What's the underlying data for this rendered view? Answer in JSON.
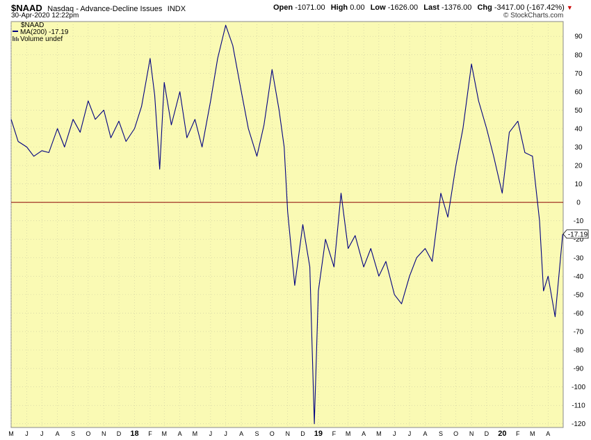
{
  "header": {
    "symbol": "$NAAD",
    "description": "Nasdaq - Advance-Decline Issues",
    "exchange": "INDX",
    "datetime": "30-Apr-2020 12:22pm",
    "open_label": "Open",
    "open_value": "-1071.00",
    "high_label": "High",
    "high_value": "0.00",
    "low_label": "Low",
    "low_value": "-1626.00",
    "last_label": "Last",
    "last_value": "-1376.00",
    "chg_label": "Chg",
    "chg_value": "-3417.00 (-167.42%)",
    "watermark": "© StockCharts.com"
  },
  "legend": {
    "symbol": "$NAAD",
    "ma": "MA(200) -17.19",
    "volume": "Volume undef"
  },
  "last_value_label": "-17.19",
  "colors": {
    "plot_bg": "#fafab4",
    "line": "#000080",
    "zero_line": "#8b0000",
    "grid": "#c8c8a0",
    "down_arrow": "#cc0000"
  },
  "chart_data": {
    "type": "line",
    "series": [
      {
        "name": "MA(200)",
        "x": [
          "2017-05-01",
          "2017-05-15",
          "2017-06-01",
          "2017-06-15",
          "2017-07-01",
          "2017-07-15",
          "2017-08-01",
          "2017-08-15",
          "2017-09-01",
          "2017-09-15",
          "2017-10-01",
          "2017-10-15",
          "2017-11-01",
          "2017-11-15",
          "2017-12-01",
          "2017-12-15",
          "2018-01-01",
          "2018-01-15",
          "2018-02-01",
          "2018-02-10",
          "2018-02-20",
          "2018-03-01",
          "2018-03-15",
          "2018-04-01",
          "2018-04-15",
          "2018-05-01",
          "2018-05-15",
          "2018-06-01",
          "2018-06-15",
          "2018-07-01",
          "2018-07-15",
          "2018-08-01",
          "2018-08-15",
          "2018-09-01",
          "2018-09-15",
          "2018-10-01",
          "2018-10-15",
          "2018-10-25",
          "2018-11-01",
          "2018-11-15",
          "2018-12-01",
          "2018-12-15",
          "2018-12-24",
          "2019-01-01",
          "2019-01-15",
          "2019-02-01",
          "2019-02-15",
          "2019-03-01",
          "2019-03-15",
          "2019-04-01",
          "2019-04-15",
          "2019-05-01",
          "2019-05-15",
          "2019-06-01",
          "2019-06-15",
          "2019-07-01",
          "2019-07-15",
          "2019-08-01",
          "2019-08-15",
          "2019-09-01",
          "2019-09-15",
          "2019-10-01",
          "2019-10-15",
          "2019-11-01",
          "2019-11-15",
          "2019-12-01",
          "2019-12-15",
          "2020-01-01",
          "2020-01-15",
          "2020-02-01",
          "2020-02-15",
          "2020-03-01",
          "2020-03-15",
          "2020-03-23",
          "2020-04-01",
          "2020-04-15",
          "2020-04-30"
        ],
        "values": [
          45,
          33,
          30,
          25,
          28,
          27,
          40,
          30,
          45,
          38,
          55,
          45,
          50,
          35,
          44,
          33,
          40,
          52,
          78,
          58,
          18,
          65,
          42,
          60,
          35,
          45,
          30,
          55,
          78,
          96,
          85,
          60,
          40,
          25,
          42,
          72,
          50,
          30,
          -5,
          -45,
          -12,
          -35,
          -120,
          -48,
          -20,
          -35,
          5,
          -25,
          -18,
          -35,
          -25,
          -40,
          -32,
          -50,
          -55,
          -40,
          -30,
          -25,
          -32,
          5,
          -8,
          20,
          40,
          75,
          55,
          40,
          25,
          5,
          38,
          44,
          27,
          25,
          -10,
          -48,
          -40,
          -62,
          -17.19
        ]
      }
    ],
    "reference_line": 0,
    "ylim": [
      -122,
      98
    ],
    "ytick_labels": [
      "90",
      "80",
      "70",
      "60",
      "50",
      "40",
      "30",
      "20",
      "10",
      "0",
      "-10",
      "-20",
      "-30",
      "-40",
      "-50",
      "-60",
      "-70",
      "-80",
      "-90",
      "-100",
      "-110",
      "-120"
    ],
    "xticks": [
      {
        "label": "M",
        "date": "2017-05-01"
      },
      {
        "label": "J",
        "date": "2017-06-01"
      },
      {
        "label": "J",
        "date": "2017-07-01"
      },
      {
        "label": "A",
        "date": "2017-08-01"
      },
      {
        "label": "S",
        "date": "2017-09-01"
      },
      {
        "label": "O",
        "date": "2017-10-01"
      },
      {
        "label": "N",
        "date": "2017-11-01"
      },
      {
        "label": "D",
        "date": "2017-12-01"
      },
      {
        "label": "18",
        "date": "2018-01-01",
        "bold": true
      },
      {
        "label": "F",
        "date": "2018-02-01"
      },
      {
        "label": "M",
        "date": "2018-03-01"
      },
      {
        "label": "A",
        "date": "2018-04-01"
      },
      {
        "label": "M",
        "date": "2018-05-01"
      },
      {
        "label": "J",
        "date": "2018-06-01"
      },
      {
        "label": "J",
        "date": "2018-07-01"
      },
      {
        "label": "A",
        "date": "2018-08-01"
      },
      {
        "label": "S",
        "date": "2018-09-01"
      },
      {
        "label": "O",
        "date": "2018-10-01"
      },
      {
        "label": "N",
        "date": "2018-11-01"
      },
      {
        "label": "D",
        "date": "2018-12-01"
      },
      {
        "label": "19",
        "date": "2019-01-01",
        "bold": true
      },
      {
        "label": "F",
        "date": "2019-02-01"
      },
      {
        "label": "M",
        "date": "2019-03-01"
      },
      {
        "label": "A",
        "date": "2019-04-01"
      },
      {
        "label": "M",
        "date": "2019-05-01"
      },
      {
        "label": "J",
        "date": "2019-06-01"
      },
      {
        "label": "J",
        "date": "2019-07-01"
      },
      {
        "label": "A",
        "date": "2019-08-01"
      },
      {
        "label": "S",
        "date": "2019-09-01"
      },
      {
        "label": "O",
        "date": "2019-10-01"
      },
      {
        "label": "N",
        "date": "2019-11-01"
      },
      {
        "label": "D",
        "date": "2019-12-01"
      },
      {
        "label": "20",
        "date": "2020-01-01",
        "bold": true
      },
      {
        "label": "F",
        "date": "2020-02-01"
      },
      {
        "label": "M",
        "date": "2020-03-01"
      },
      {
        "label": "A",
        "date": "2020-04-01"
      }
    ],
    "xlim": [
      "2017-05-01",
      "2020-05-01"
    ],
    "grid": true,
    "legend_position": "top-left",
    "title": "",
    "xlabel": "",
    "ylabel": ""
  }
}
